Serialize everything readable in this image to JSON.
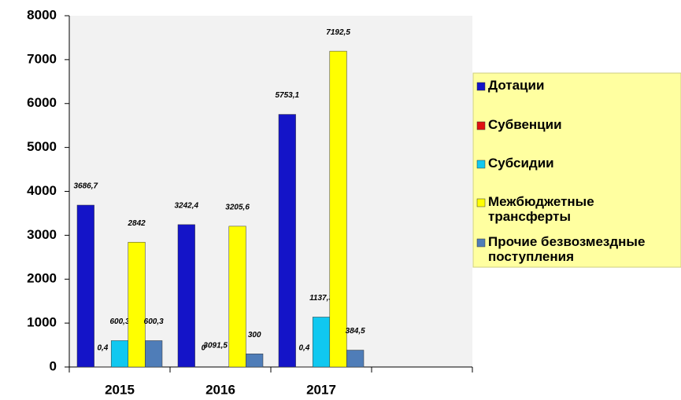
{
  "chart_data": {
    "type": "bar",
    "categories": [
      "2015",
      "2016",
      "2017",
      null
    ],
    "series": [
      {
        "name": "Дотации",
        "color": "#1414c8",
        "values": [
          3686.7,
          3242.4,
          5753.1,
          null
        ],
        "value_labels": [
          "3686,7",
          "3242,4",
          "5753,1",
          null
        ]
      },
      {
        "name": "Субвенции",
        "color": "#e01010",
        "values": [
          0.4,
          0,
          0.4,
          null
        ],
        "value_labels": [
          "0,4",
          "0",
          "0,4",
          null
        ]
      },
      {
        "name": "Субсидии",
        "color": "#10c8f0",
        "values": [
          600.3,
          null,
          1137.3,
          null
        ],
        "value_labels": [
          "600,3",
          null,
          "1137,3",
          null
        ]
      },
      {
        "name": "Межбюджетные трансферты",
        "color": "#ffff00",
        "values": [
          2842,
          3205.6,
          7192.5,
          null
        ],
        "value_labels": [
          "2842",
          "3205,6",
          "7192,5",
          null
        ]
      },
      {
        "name": "Прочие безвозмездные поступления",
        "color": "#4f7db8",
        "values": [
          600.3,
          300,
          384.5,
          null
        ],
        "value_labels": [
          "600,3",
          "300",
          "384,5",
          null
        ]
      }
    ],
    "annotations": [
      "3091,5"
    ],
    "ylim": [
      0,
      8000
    ],
    "yticks": [
      0,
      1000,
      2000,
      3000,
      4000,
      5000,
      6000,
      7000,
      8000
    ],
    "grid": false,
    "legend": "right"
  }
}
